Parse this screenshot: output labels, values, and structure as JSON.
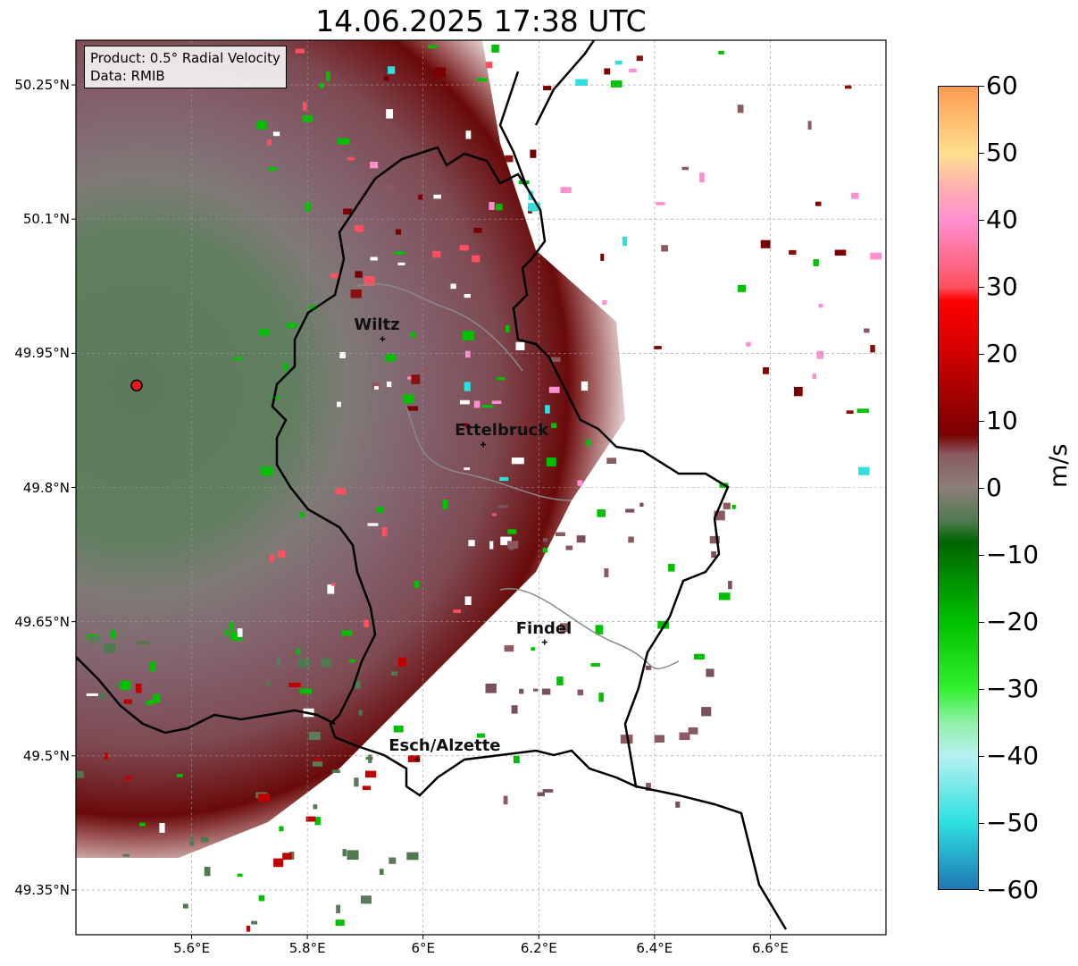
{
  "title": "14.06.2025 17:38 UTC",
  "info": {
    "product": "Product: 0.5° Radial Velocity",
    "data": "Data: RMIB"
  },
  "lat_labels": [
    "50.25°N",
    "50.1°N",
    "49.95°N",
    "49.8°N",
    "49.65°N",
    "49.5°N",
    "49.35°N"
  ],
  "lat_values": [
    50.25,
    50.1,
    49.95,
    49.8,
    49.65,
    49.5,
    49.35
  ],
  "lon_labels": [
    "5.6°E",
    "5.8°E",
    "6°E",
    "6.2°E",
    "6.4°E",
    "6.6°E"
  ],
  "lon_values": [
    5.6,
    5.8,
    6.0,
    6.2,
    6.4,
    6.6
  ],
  "map_extent": {
    "lon": [
      5.4,
      6.8
    ],
    "lat": [
      49.3,
      50.3
    ]
  },
  "radar_site": {
    "lon": 5.505,
    "lat": 49.914,
    "color": "#e41a1c"
  },
  "cities": [
    {
      "name": "Wiltz",
      "lon": 5.93,
      "lat": 49.966
    },
    {
      "name": "Ettelbruck",
      "lon": 6.104,
      "lat": 49.848
    },
    {
      "name": "Findel",
      "lon": 6.21,
      "lat": 49.627
    },
    {
      "name": "Esch/Alzette",
      "lon": 5.99,
      "lat": 49.496
    }
  ],
  "colorbar": {
    "unit": "m/s",
    "ticks": [
      "60",
      "50",
      "40",
      "30",
      "20",
      "10",
      "0",
      "−10",
      "−20",
      "−30",
      "−40",
      "−50",
      "−60"
    ],
    "min": -60,
    "max": 60,
    "stops": [
      {
        "v": -60,
        "color": "#1f78b4"
      },
      {
        "v": -50,
        "color": "#2ee0e0"
      },
      {
        "v": -40,
        "color": "#b8f0f0"
      },
      {
        "v": -35,
        "color": "#90f0a8"
      },
      {
        "v": -30,
        "color": "#30f030"
      },
      {
        "v": -20,
        "color": "#00c000"
      },
      {
        "v": -8,
        "color": "#006400"
      },
      {
        "v": -5,
        "color": "#4e7a4e"
      },
      {
        "v": 0,
        "color": "#8b7f7a"
      },
      {
        "v": 5,
        "color": "#8a5a60"
      },
      {
        "v": 8,
        "color": "#7a0000"
      },
      {
        "v": 20,
        "color": "#d00000"
      },
      {
        "v": 28,
        "color": "#ff0000"
      },
      {
        "v": 30,
        "color": "#ff5060"
      },
      {
        "v": 40,
        "color": "#ff90d0"
      },
      {
        "v": 45,
        "color": "#ffb0b0"
      },
      {
        "v": 50,
        "color": "#ffe090"
      },
      {
        "v": 60,
        "color": "#ff9b50"
      }
    ]
  }
}
